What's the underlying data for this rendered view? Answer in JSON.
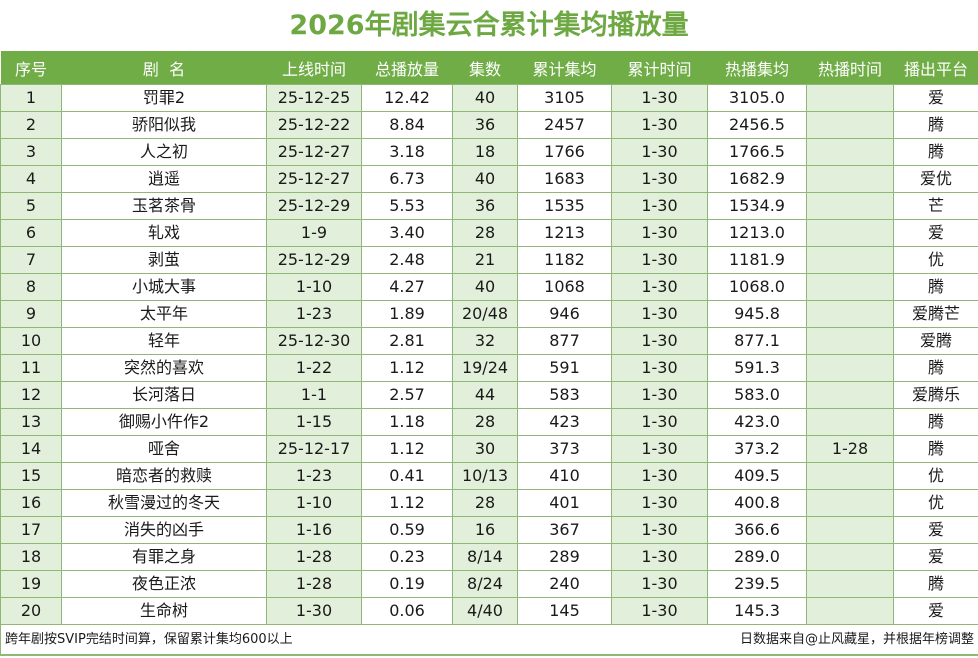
{
  "title": "2026年剧集云合累计集均播放量",
  "headers": [
    "序号",
    "剧  名",
    "上线时间",
    "总播放量",
    "集数",
    "累计集均",
    "累计时间",
    "热播集均",
    "热播时间",
    "播出平台"
  ],
  "rows": [
    {
      "rank": "1",
      "name": "罚罪2",
      "launch": "25-12-25",
      "total": "12.42",
      "episodes": "40",
      "cum_avg": "3105",
      "cum_time": "1-30",
      "hot_avg": "3105.0",
      "hot_time": "",
      "platform": "爱"
    },
    {
      "rank": "2",
      "name": "骄阳似我",
      "launch": "25-12-22",
      "total": "8.84",
      "episodes": "36",
      "cum_avg": "2457",
      "cum_time": "1-30",
      "hot_avg": "2456.5",
      "hot_time": "",
      "platform": "腾"
    },
    {
      "rank": "3",
      "name": "人之初",
      "launch": "25-12-27",
      "total": "3.18",
      "episodes": "18",
      "cum_avg": "1766",
      "cum_time": "1-30",
      "hot_avg": "1766.5",
      "hot_time": "",
      "platform": "腾"
    },
    {
      "rank": "4",
      "name": "逍遥",
      "launch": "25-12-27",
      "total": "6.73",
      "episodes": "40",
      "cum_avg": "1683",
      "cum_time": "1-30",
      "hot_avg": "1682.9",
      "hot_time": "",
      "platform": "爱优"
    },
    {
      "rank": "5",
      "name": "玉茗茶骨",
      "launch": "25-12-29",
      "total": "5.53",
      "episodes": "36",
      "cum_avg": "1535",
      "cum_time": "1-30",
      "hot_avg": "1534.9",
      "hot_time": "",
      "platform": "芒"
    },
    {
      "rank": "6",
      "name": "轧戏",
      "launch": "1-9",
      "total": "3.40",
      "episodes": "28",
      "cum_avg": "1213",
      "cum_time": "1-30",
      "hot_avg": "1213.0",
      "hot_time": "",
      "platform": "爱"
    },
    {
      "rank": "7",
      "name": "剥茧",
      "launch": "25-12-29",
      "total": "2.48",
      "episodes": "21",
      "cum_avg": "1182",
      "cum_time": "1-30",
      "hot_avg": "1181.9",
      "hot_time": "",
      "platform": "优"
    },
    {
      "rank": "8",
      "name": "小城大事",
      "launch": "1-10",
      "total": "4.27",
      "episodes": "40",
      "cum_avg": "1068",
      "cum_time": "1-30",
      "hot_avg": "1068.0",
      "hot_time": "",
      "platform": "腾"
    },
    {
      "rank": "9",
      "name": "太平年",
      "launch": "1-23",
      "total": "1.89",
      "episodes": "20/48",
      "cum_avg": "946",
      "cum_time": "1-30",
      "hot_avg": "945.8",
      "hot_time": "",
      "platform": "爱腾芒"
    },
    {
      "rank": "10",
      "name": "轻年",
      "launch": "25-12-30",
      "total": "2.81",
      "episodes": "32",
      "cum_avg": "877",
      "cum_time": "1-30",
      "hot_avg": "877.1",
      "hot_time": "",
      "platform": "爱腾"
    },
    {
      "rank": "11",
      "name": "突然的喜欢",
      "launch": "1-22",
      "total": "1.12",
      "episodes": "19/24",
      "cum_avg": "591",
      "cum_time": "1-30",
      "hot_avg": "591.3",
      "hot_time": "",
      "platform": "腾"
    },
    {
      "rank": "12",
      "name": "长河落日",
      "launch": "1-1",
      "total": "2.57",
      "episodes": "44",
      "cum_avg": "583",
      "cum_time": "1-30",
      "hot_avg": "583.0",
      "hot_time": "",
      "platform": "爱腾乐"
    },
    {
      "rank": "13",
      "name": "御赐小仵作2",
      "launch": "1-15",
      "total": "1.18",
      "episodes": "28",
      "cum_avg": "423",
      "cum_time": "1-30",
      "hot_avg": "423.0",
      "hot_time": "",
      "platform": "腾"
    },
    {
      "rank": "14",
      "name": "哑舍",
      "launch": "25-12-17",
      "total": "1.12",
      "episodes": "30",
      "cum_avg": "373",
      "cum_time": "1-30",
      "hot_avg": "373.2",
      "hot_time": "1-28",
      "platform": "腾"
    },
    {
      "rank": "15",
      "name": "暗恋者的救赎",
      "launch": "1-23",
      "total": "0.41",
      "episodes": "10/13",
      "cum_avg": "410",
      "cum_time": "1-30",
      "hot_avg": "409.5",
      "hot_time": "",
      "platform": "优"
    },
    {
      "rank": "16",
      "name": "秋雪漫过的冬天",
      "launch": "1-10",
      "total": "1.12",
      "episodes": "28",
      "cum_avg": "401",
      "cum_time": "1-30",
      "hot_avg": "400.8",
      "hot_time": "",
      "platform": "优"
    },
    {
      "rank": "17",
      "name": "消失的凶手",
      "launch": "1-16",
      "total": "0.59",
      "episodes": "16",
      "cum_avg": "367",
      "cum_time": "1-30",
      "hot_avg": "366.6",
      "hot_time": "",
      "platform": "爱"
    },
    {
      "rank": "18",
      "name": "有罪之身",
      "launch": "1-28",
      "total": "0.23",
      "episodes": "8/14",
      "cum_avg": "289",
      "cum_time": "1-30",
      "hot_avg": "289.0",
      "hot_time": "",
      "platform": "爱"
    },
    {
      "rank": "19",
      "name": "夜色正浓",
      "launch": "1-28",
      "total": "0.19",
      "episodes": "8/24",
      "cum_avg": "240",
      "cum_time": "1-30",
      "hot_avg": "239.5",
      "hot_time": "",
      "platform": "腾"
    },
    {
      "rank": "20",
      "name": "生命树",
      "launch": "1-30",
      "total": "0.06",
      "episodes": "4/40",
      "cum_avg": "145",
      "cum_time": "1-30",
      "hot_avg": "145.3",
      "hot_time": "",
      "platform": "爱"
    }
  ],
  "footer": {
    "left_note": "跨年剧按SVIP完结时间算，保留累计集均600以上",
    "right_note": "日数据来自@止风藏星，并根据年榜调整"
  },
  "colors": {
    "title": "#6ea843",
    "header_bg": "#70ad47",
    "header_text": "#ffffff",
    "alt_col_bg": "#e2efda",
    "border": "#8fb775"
  }
}
